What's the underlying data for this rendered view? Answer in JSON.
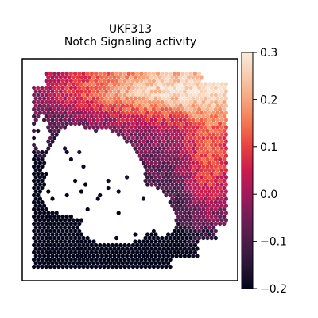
{
  "chart_data": {
    "type": "heatmap",
    "title": "UKF313",
    "subtitle": "Notch Signaling activity",
    "colorbar": {
      "vmin": -0.2,
      "vmax": 0.3,
      "ticks": [
        -0.2,
        -0.1,
        0.0,
        0.1,
        0.2,
        0.3
      ],
      "tick_labels": [
        "−0.2",
        "−0.1",
        "0.0",
        "0.1",
        "0.2",
        "0.3"
      ],
      "colormap": "rocket"
    },
    "axes": {
      "xticks": false,
      "yticks": false,
      "frame": true
    },
    "spatial_pattern": {
      "high_region": "upper-right band",
      "low_region": "lower-left tissue ring",
      "tissue_shape": "roughly square section with large central void"
    }
  },
  "colors": {
    "rocket": [
      "#03051a",
      "#2a1636",
      "#4c1d4b",
      "#701f57",
      "#a11a5b",
      "#cb1b4f",
      "#e83f3f",
      "#f37651",
      "#f6a47c",
      "#f7cbad",
      "#faebdd"
    ]
  }
}
